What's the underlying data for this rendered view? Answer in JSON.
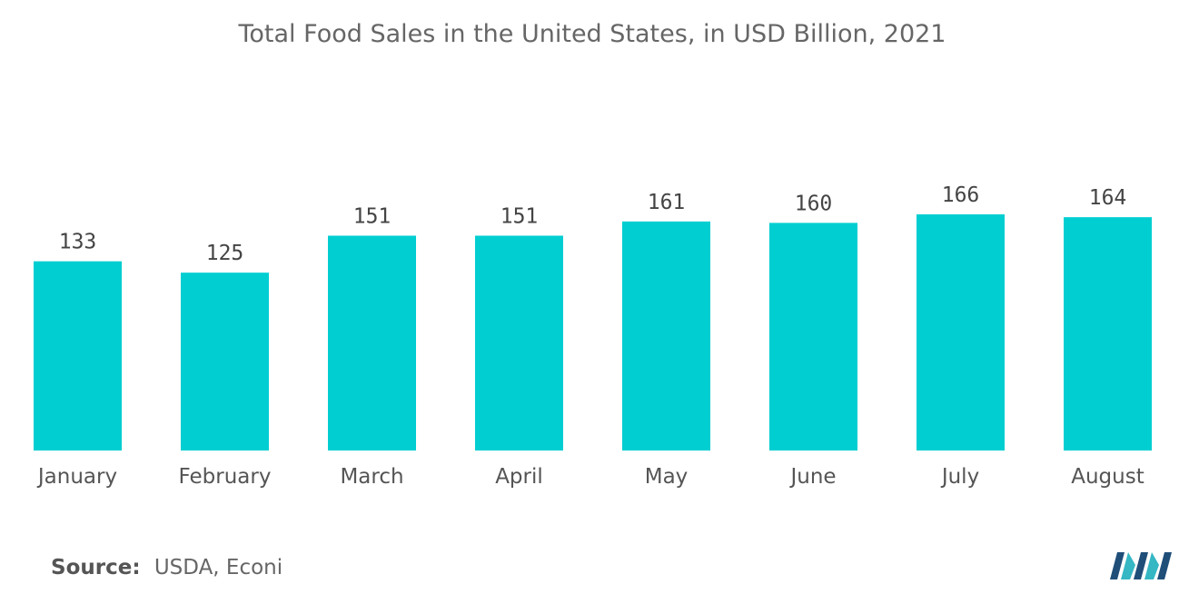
{
  "chart_data": {
    "type": "bar",
    "title": "Total Food Sales in the United States, in USD Billion, 2021",
    "xlabel": "",
    "ylabel": "",
    "categories": [
      "January",
      "February",
      "March",
      "April",
      "May",
      "June",
      "July",
      "August"
    ],
    "values": [
      133,
      125,
      151,
      151,
      161,
      160,
      166,
      164
    ],
    "data_labels": [
      "133",
      "125",
      "151",
      "151",
      "161",
      "160",
      "166",
      "164"
    ],
    "ylim": [
      0,
      166
    ],
    "grid": false,
    "legend": "none",
    "bar_color": "#00CED1"
  },
  "footer": {
    "source_label": "Source:",
    "source_text": "USDA, Econi"
  },
  "colors": {
    "bar": "#00CED1",
    "logo_dark": "#1f4e79",
    "logo_light": "#35b7c4"
  },
  "logo_icon": "mordor-intelligence-logo"
}
